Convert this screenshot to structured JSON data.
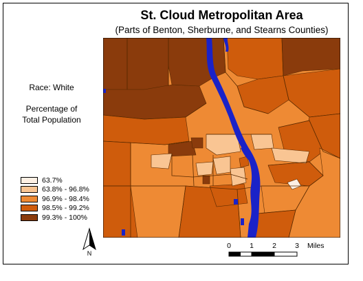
{
  "map": {
    "title": "St. Cloud Metropolitan Area",
    "subtitle": "(Parts of Benton, Sherburne, and Stearns Counties)"
  },
  "sidebar": {
    "variable": "Race: White",
    "measure_line1": "Percentage of",
    "measure_line2": "Total Population"
  },
  "legend": {
    "classes": [
      {
        "label": "63.7%",
        "color": "#fdf0e4"
      },
      {
        "label": "63.8% - 96.8%",
        "color": "#f9c593"
      },
      {
        "label": "96.9% - 98.4%",
        "color": "#ee8a34"
      },
      {
        "label": "98.5% - 99.2%",
        "color": "#cf5c0c"
      },
      {
        "label": "99.3% - 100%",
        "color": "#8a3b0c"
      }
    ]
  },
  "colors": {
    "water": "#1a22c8",
    "boundary": "#5a2a00"
  },
  "north_arrow": {
    "label": "N",
    "icon": "north-arrow-icon"
  },
  "scale_bar": {
    "ticks": [
      "0",
      "1",
      "2",
      "3"
    ],
    "unit": "Miles"
  }
}
